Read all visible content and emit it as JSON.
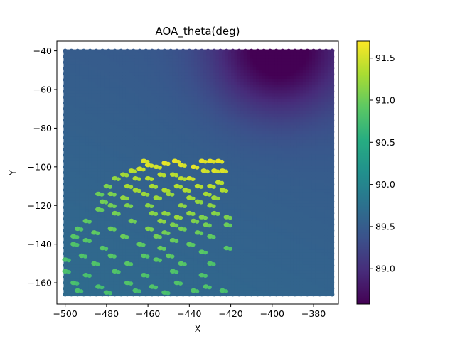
{
  "chart_data": {
    "type": "scatter",
    "title": "AOA_theta(deg)",
    "xlabel": "X",
    "ylabel": "Y",
    "xlim": [
      -504,
      -368
    ],
    "ylim": [
      -171,
      -35
    ],
    "xticks": [
      -500,
      -480,
      -460,
      -440,
      -420,
      -400,
      -380
    ],
    "yticks": [
      -40,
      -60,
      -80,
      -100,
      -120,
      -140,
      -160
    ],
    "colorbar": {
      "colormap": "viridis",
      "min": 88.58,
      "max": 91.7,
      "ticks": [
        89.0,
        89.5,
        90.0,
        90.5,
        91.0,
        91.5
      ]
    },
    "grid": {
      "x_range": [
        -500,
        -371
      ],
      "y_range": [
        -166,
        -40
      ],
      "step": 1.5
    },
    "field": {
      "base_value": 89.65,
      "dip_center": [
        -397,
        -40
      ],
      "dip_value": 88.6,
      "gradient_x": -0.0025,
      "gradient_y": 0.002
    },
    "highlighted_points": [
      {
        "x": -462,
        "y": -97,
        "v": 91.55
      },
      {
        "x": -460,
        "y": -99,
        "v": 91.55
      },
      {
        "x": -464,
        "y": -101,
        "v": 91.5
      },
      {
        "x": -456,
        "y": -100,
        "v": 91.5
      },
      {
        "x": -468,
        "y": -102,
        "v": 91.4
      },
      {
        "x": -452,
        "y": -98,
        "v": 91.6
      },
      {
        "x": -447,
        "y": -97,
        "v": 91.6
      },
      {
        "x": -444,
        "y": -99,
        "v": 91.55
      },
      {
        "x": -438,
        "y": -100,
        "v": 91.6
      },
      {
        "x": -434,
        "y": -97,
        "v": 91.6
      },
      {
        "x": -430,
        "y": -97,
        "v": 91.6
      },
      {
        "x": -426,
        "y": -97,
        "v": 91.6
      },
      {
        "x": -433,
        "y": -102,
        "v": 91.5
      },
      {
        "x": -428,
        "y": -102,
        "v": 91.55
      },
      {
        "x": -424,
        "y": -102,
        "v": 91.55
      },
      {
        "x": -448,
        "y": -104,
        "v": 91.4
      },
      {
        "x": -444,
        "y": -106,
        "v": 91.4
      },
      {
        "x": -440,
        "y": -106,
        "v": 91.5
      },
      {
        "x": -472,
        "y": -104,
        "v": 91.3
      },
      {
        "x": -466,
        "y": -106,
        "v": 91.35
      },
      {
        "x": -460,
        "y": -106,
        "v": 91.4
      },
      {
        "x": -454,
        "y": -104,
        "v": 91.4
      },
      {
        "x": -476,
        "y": -106,
        "v": 91.2
      },
      {
        "x": -470,
        "y": -110,
        "v": 91.3
      },
      {
        "x": -466,
        "y": -112,
        "v": 91.3
      },
      {
        "x": -458,
        "y": -110,
        "v": 91.3
      },
      {
        "x": -452,
        "y": -112,
        "v": 91.35
      },
      {
        "x": -446,
        "y": -110,
        "v": 91.35
      },
      {
        "x": -442,
        "y": -112,
        "v": 91.35
      },
      {
        "x": -436,
        "y": -110,
        "v": 91.4
      },
      {
        "x": -430,
        "y": -110,
        "v": 91.4
      },
      {
        "x": -426,
        "y": -108,
        "v": 91.4
      },
      {
        "x": -424,
        "y": -112,
        "v": 91.35
      },
      {
        "x": -480,
        "y": -110,
        "v": 91.1
      },
      {
        "x": -484,
        "y": -114,
        "v": 91.0
      },
      {
        "x": -478,
        "y": -114,
        "v": 91.1
      },
      {
        "x": -472,
        "y": -116,
        "v": 91.2
      },
      {
        "x": -462,
        "y": -114,
        "v": 91.25
      },
      {
        "x": -456,
        "y": -116,
        "v": 91.25
      },
      {
        "x": -450,
        "y": -114,
        "v": 91.25
      },
      {
        "x": -440,
        "y": -116,
        "v": 91.3
      },
      {
        "x": -432,
        "y": -114,
        "v": 91.3
      },
      {
        "x": -428,
        "y": -116,
        "v": 91.25
      },
      {
        "x": -482,
        "y": -118,
        "v": 91.05
      },
      {
        "x": -478,
        "y": -120,
        "v": 91.05
      },
      {
        "x": -470,
        "y": -120,
        "v": 91.1
      },
      {
        "x": -460,
        "y": -120,
        "v": 91.15
      },
      {
        "x": -444,
        "y": -120,
        "v": 91.2
      },
      {
        "x": -436,
        "y": -118,
        "v": 91.2
      },
      {
        "x": -430,
        "y": -120,
        "v": 91.2
      },
      {
        "x": -484,
        "y": -122,
        "v": 91.0
      },
      {
        "x": -476,
        "y": -124,
        "v": 91.05
      },
      {
        "x": -458,
        "y": -124,
        "v": 91.15
      },
      {
        "x": -452,
        "y": -124,
        "v": 91.2
      },
      {
        "x": -446,
        "y": -126,
        "v": 91.25
      },
      {
        "x": -440,
        "y": -124,
        "v": 91.2
      },
      {
        "x": -434,
        "y": -126,
        "v": 91.1
      },
      {
        "x": -428,
        "y": -124,
        "v": 91.15
      },
      {
        "x": -422,
        "y": -126,
        "v": 91.1
      },
      {
        "x": -490,
        "y": -128,
        "v": 90.95
      },
      {
        "x": -468,
        "y": -128,
        "v": 91.05
      },
      {
        "x": -454,
        "y": -128,
        "v": 91.2
      },
      {
        "x": -448,
        "y": -130,
        "v": 91.1
      },
      {
        "x": -438,
        "y": -128,
        "v": 91.1
      },
      {
        "x": -432,
        "y": -130,
        "v": 91.05
      },
      {
        "x": -422,
        "y": -130,
        "v": 91.0
      },
      {
        "x": -494,
        "y": -132,
        "v": 90.9
      },
      {
        "x": -486,
        "y": -134,
        "v": 90.95
      },
      {
        "x": -478,
        "y": -132,
        "v": 91.0
      },
      {
        "x": -460,
        "y": -132,
        "v": 91.1
      },
      {
        "x": -452,
        "y": -134,
        "v": 91.05
      },
      {
        "x": -444,
        "y": -132,
        "v": 91.05
      },
      {
        "x": -436,
        "y": -134,
        "v": 91.0
      },
      {
        "x": -496,
        "y": -136,
        "v": 90.9
      },
      {
        "x": -490,
        "y": -138,
        "v": 90.9
      },
      {
        "x": -472,
        "y": -136,
        "v": 91.0
      },
      {
        "x": -456,
        "y": -136,
        "v": 91.05
      },
      {
        "x": -448,
        "y": -138,
        "v": 91.0
      },
      {
        "x": -430,
        "y": -136,
        "v": 90.95
      },
      {
        "x": -496,
        "y": -140,
        "v": 90.85
      },
      {
        "x": -482,
        "y": -142,
        "v": 90.9
      },
      {
        "x": -464,
        "y": -140,
        "v": 90.95
      },
      {
        "x": -454,
        "y": -142,
        "v": 91.0
      },
      {
        "x": -440,
        "y": -140,
        "v": 90.95
      },
      {
        "x": -422,
        "y": -142,
        "v": 90.9
      },
      {
        "x": -492,
        "y": -146,
        "v": 90.85
      },
      {
        "x": -478,
        "y": -146,
        "v": 90.9
      },
      {
        "x": -462,
        "y": -146,
        "v": 90.9
      },
      {
        "x": -450,
        "y": -146,
        "v": 90.95
      },
      {
        "x": -434,
        "y": -144,
        "v": 90.9
      },
      {
        "x": -500,
        "y": -148,
        "v": 90.8
      },
      {
        "x": -486,
        "y": -150,
        "v": 90.85
      },
      {
        "x": -470,
        "y": -150,
        "v": 90.9
      },
      {
        "x": -456,
        "y": -148,
        "v": 90.9
      },
      {
        "x": -444,
        "y": -150,
        "v": 90.9
      },
      {
        "x": -430,
        "y": -150,
        "v": 90.85
      },
      {
        "x": -500,
        "y": -154,
        "v": 90.8
      },
      {
        "x": -490,
        "y": -156,
        "v": 90.8
      },
      {
        "x": -476,
        "y": -154,
        "v": 90.85
      },
      {
        "x": -462,
        "y": -156,
        "v": 90.85
      },
      {
        "x": -448,
        "y": -154,
        "v": 90.85
      },
      {
        "x": -434,
        "y": -156,
        "v": 90.85
      },
      {
        "x": -496,
        "y": -160,
        "v": 90.8
      },
      {
        "x": -484,
        "y": -162,
        "v": 90.8
      },
      {
        "x": -470,
        "y": -160,
        "v": 90.85
      },
      {
        "x": -458,
        "y": -162,
        "v": 90.85
      },
      {
        "x": -446,
        "y": -160,
        "v": 90.85
      },
      {
        "x": -432,
        "y": -162,
        "v": 90.85
      },
      {
        "x": -494,
        "y": -164,
        "v": 90.8
      },
      {
        "x": -480,
        "y": -165,
        "v": 90.8
      },
      {
        "x": -466,
        "y": -164,
        "v": 90.8
      },
      {
        "x": -452,
        "y": -165,
        "v": 90.8
      },
      {
        "x": -438,
        "y": -164,
        "v": 90.85
      },
      {
        "x": -424,
        "y": -164,
        "v": 90.8
      }
    ]
  }
}
